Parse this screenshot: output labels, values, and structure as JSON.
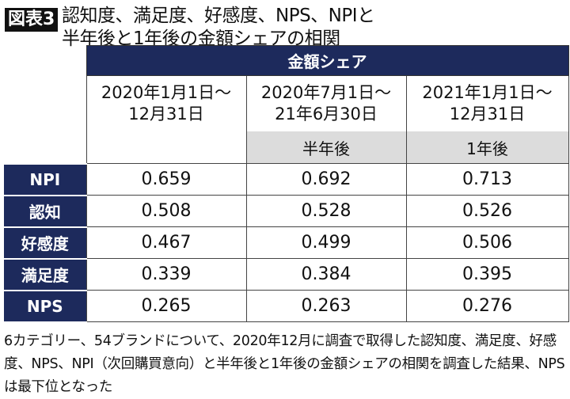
{
  "badge": "図表3",
  "title_line1": "認知度、満足度、好感度、NPS、NPIと",
  "title_line2": "半年後と1年後の金額シェアの相関",
  "table": {
    "group_header": "金額シェア",
    "columns": [
      {
        "line1": "2020年1月1日～",
        "line2": "12月31日",
        "sub": ""
      },
      {
        "line1": "2020年7月1日～",
        "line2": "21年6月30日",
        "sub": "半年後"
      },
      {
        "line1": "2021年1月1日～",
        "line2": "12月31日",
        "sub": "1年後"
      }
    ],
    "rows": [
      {
        "label": "NPI",
        "values": [
          "0.659",
          "0.692",
          "0.713"
        ]
      },
      {
        "label": "認知",
        "values": [
          "0.508",
          "0.528",
          "0.526"
        ]
      },
      {
        "label": "好感度",
        "values": [
          "0.467",
          "0.499",
          "0.506"
        ]
      },
      {
        "label": "満足度",
        "values": [
          "0.339",
          "0.384",
          "0.395"
        ]
      },
      {
        "label": "NPS",
        "values": [
          "0.265",
          "0.263",
          "0.276"
        ]
      }
    ]
  },
  "note": "6カテゴリー、54ブランドについて、2020年12月に調査で取得した認知度、満足度、好感度、NPS、NPI（次回購買意向）と半年後と1年後の金額シェアの相関を調査した結果、NPSは最下位となった",
  "colors": {
    "navy": "#1d2a5c",
    "gray": "#dcdcdc"
  }
}
